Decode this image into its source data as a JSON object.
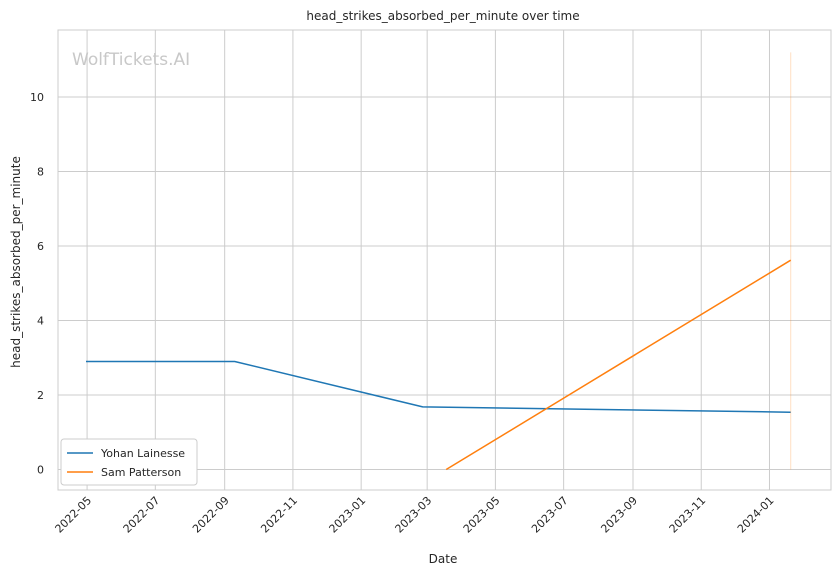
{
  "chart_data": {
    "type": "line",
    "title": "head_strikes_absorbed_per_minute over time",
    "xlabel": "Date",
    "ylabel": "head_strikes_absorbed_per_minute",
    "watermark": "WolfTickets.AI",
    "x_ticks": [
      "2022-05",
      "2022-07",
      "2022-09",
      "2022-11",
      "2023-01",
      "2023-03",
      "2023-05",
      "2023-07",
      "2023-09",
      "2023-11",
      "2024-01"
    ],
    "y_ticks": [
      0,
      2,
      4,
      6,
      8,
      10
    ],
    "xlim": [
      "2022-04-05",
      "2024-02-25"
    ],
    "ylim": [
      -0.55,
      11.8
    ],
    "grid": true,
    "legend_position": "bottom-left",
    "series": [
      {
        "name": "Yohan Lainesse",
        "color": "#1f77b4",
        "x": [
          "2022-04-30",
          "2022-09-10",
          "2023-02-25",
          "2024-01-20"
        ],
        "y": [
          2.9,
          2.9,
          1.68,
          1.54
        ]
      },
      {
        "name": "Sam Patterson",
        "color": "#ff7f0e",
        "x": [
          "2023-03-18",
          "2024-01-20"
        ],
        "y": [
          0.0,
          5.62
        ],
        "error_bar": {
          "x": "2024-01-20",
          "low": 0.0,
          "high": 11.2
        }
      }
    ]
  }
}
